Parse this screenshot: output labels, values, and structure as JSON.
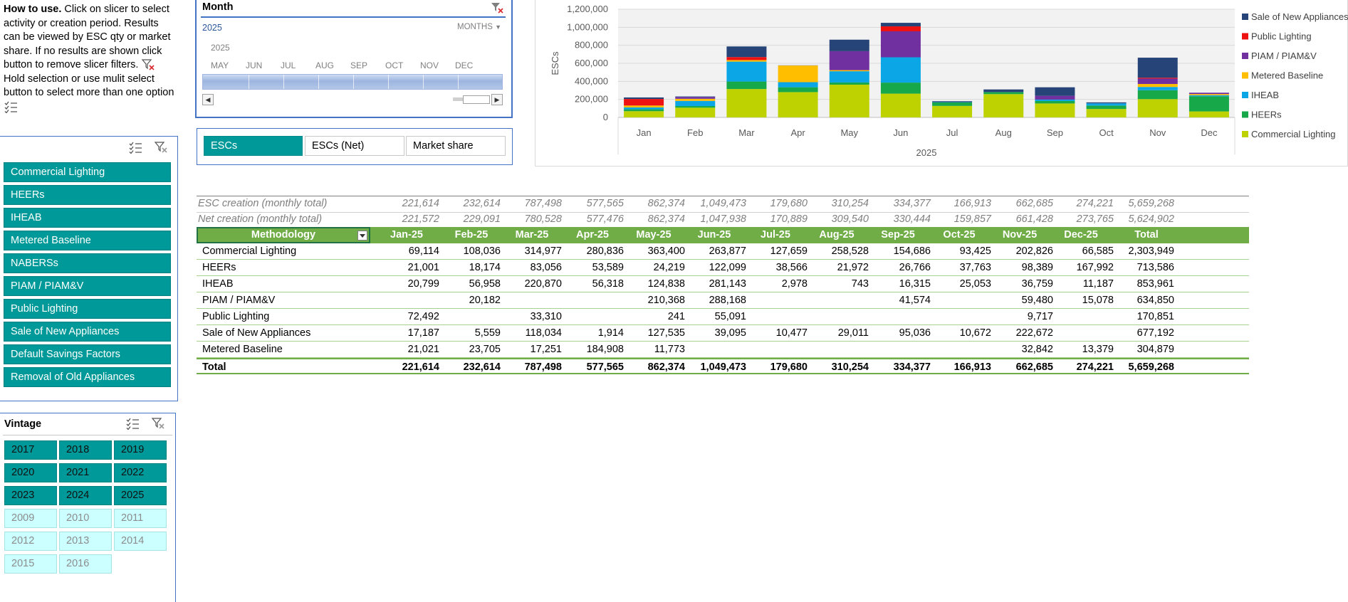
{
  "howto": {
    "heading": "How to use.",
    "text1": " Click on slicer to select activity or creation period. Results can be viewed by ESC qty or market share. If no results are shown click button to remove slicer filters.",
    "text2": " Hold selection or use mulit select button to select more than one option"
  },
  "month_slicer": {
    "title": "Month",
    "year": "2025",
    "units": "MONTHS",
    "timeline_year": "2025",
    "months": [
      "MAY",
      "JUN",
      "JUL",
      "AUG",
      "SEP",
      "OCT",
      "NOV",
      "DEC"
    ]
  },
  "measure": {
    "buttons": [
      {
        "label": "ESCs",
        "selected": true
      },
      {
        "label": "ESCs (Net)",
        "selected": false
      },
      {
        "label": "Market share",
        "selected": false
      }
    ]
  },
  "methodology_slicer": {
    "items": [
      "Commercial Lighting",
      "HEERs",
      "IHEAB",
      "Metered Baseline",
      "NABERSs",
      "PIAM / PIAM&V",
      "Public Lighting",
      "Sale of New Appliances",
      "Default Savings Factors",
      "Removal of Old Appliances"
    ]
  },
  "vintage_slicer": {
    "title": "Vintage",
    "items": [
      {
        "label": "2017",
        "selected": true
      },
      {
        "label": "2018",
        "selected": true
      },
      {
        "label": "2019",
        "selected": true
      },
      {
        "label": "2020",
        "selected": true
      },
      {
        "label": "2021",
        "selected": true
      },
      {
        "label": "2022",
        "selected": true
      },
      {
        "label": "2023",
        "selected": true
      },
      {
        "label": "2024",
        "selected": true
      },
      {
        "label": "2025",
        "selected": true
      },
      {
        "label": "2009",
        "selected": false
      },
      {
        "label": "2010",
        "selected": false
      },
      {
        "label": "2011",
        "selected": false
      },
      {
        "label": "2012",
        "selected": false
      },
      {
        "label": "2013",
        "selected": false
      },
      {
        "label": "2014",
        "selected": false
      },
      {
        "label": "2015",
        "selected": false
      },
      {
        "label": "2016",
        "selected": false
      }
    ]
  },
  "chart_data": {
    "type": "bar",
    "stacked": true,
    "categories": [
      "Jan",
      "Feb",
      "Mar",
      "Apr",
      "May",
      "Jun",
      "Jul",
      "Aug",
      "Sep",
      "Oct",
      "Nov",
      "Dec"
    ],
    "xlabel": "2025",
    "ylabel": "ESCs",
    "ylim": [
      0,
      1200000
    ],
    "yticks": [
      "0",
      "200,000",
      "400,000",
      "600,000",
      "800,000",
      "1,000,000",
      "1,200,000"
    ],
    "legend_position": "right",
    "series": [
      {
        "name": "Commercial Lighting",
        "color": "#bdd200",
        "values": [
          69114,
          108036,
          314977,
          280836,
          363400,
          263877,
          127659,
          258528,
          154686,
          93425,
          202826,
          66585
        ]
      },
      {
        "name": "HEERs",
        "color": "#17a84a",
        "values": [
          21001,
          18174,
          83056,
          53589,
          24219,
          122099,
          38566,
          21972,
          26766,
          37763,
          98389,
          167992
        ]
      },
      {
        "name": "IHEAB",
        "color": "#0aa6e6",
        "values": [
          20799,
          56958,
          220870,
          56318,
          124838,
          281143,
          2978,
          743,
          16315,
          25053,
          36759,
          11187
        ]
      },
      {
        "name": "Metered Baseline",
        "color": "#ffbf00",
        "values": [
          21021,
          23705,
          17251,
          184908,
          11773,
          0,
          0,
          0,
          0,
          0,
          32842,
          13379
        ]
      },
      {
        "name": "PIAM / PIAM&V",
        "color": "#7030a0",
        "values": [
          0,
          20182,
          0,
          0,
          210368,
          288168,
          0,
          0,
          41574,
          0,
          59480,
          15078
        ]
      },
      {
        "name": "Public Lighting",
        "color": "#ee1111",
        "values": [
          72492,
          0,
          33310,
          0,
          241,
          55091,
          0,
          0,
          0,
          0,
          9717,
          0
        ]
      },
      {
        "name": "Sale of New Appliances",
        "color": "#264478",
        "values": [
          17187,
          5559,
          118034,
          1914,
          127535,
          39095,
          10477,
          29011,
          95036,
          10672,
          222672,
          0
        ]
      }
    ],
    "legend": [
      "Sale of New Appliances",
      "Public Lighting",
      "PIAM / PIAM&V",
      "Metered Baseline",
      "IHEAB",
      "HEERs",
      "Commercial Lighting"
    ]
  },
  "table": {
    "summary_rows": [
      {
        "label": "ESC creation (monthly total)",
        "values": [
          "221,614",
          "232,614",
          "787,498",
          "577,565",
          "862,374",
          "1,049,473",
          "179,680",
          "310,254",
          "334,377",
          "166,913",
          "662,685",
          "274,221",
          "5,659,268"
        ]
      },
      {
        "label": "Net creation (monthly total)",
        "values": [
          "221,572",
          "229,091",
          "780,528",
          "577,476",
          "862,374",
          "1,047,938",
          "170,889",
          "309,540",
          "330,444",
          "159,857",
          "661,428",
          "273,765",
          "5,624,902"
        ]
      }
    ],
    "header": {
      "label": "Methodology",
      "columns": [
        "Jan-25",
        "Feb-25",
        "Mar-25",
        "Apr-25",
        "May-25",
        "Jun-25",
        "Jul-25",
        "Aug-25",
        "Sep-25",
        "Oct-25",
        "Nov-25",
        "Dec-25",
        "Total"
      ]
    },
    "rows": [
      {
        "label": "Commercial Lighting",
        "values": [
          "69,114",
          "108,036",
          "314,977",
          "280,836",
          "363,400",
          "263,877",
          "127,659",
          "258,528",
          "154,686",
          "93,425",
          "202,826",
          "66,585",
          "2,303,949"
        ]
      },
      {
        "label": "HEERs",
        "values": [
          "21,001",
          "18,174",
          "83,056",
          "53,589",
          "24,219",
          "122,099",
          "38,566",
          "21,972",
          "26,766",
          "37,763",
          "98,389",
          "167,992",
          "713,586"
        ]
      },
      {
        "label": "IHEAB",
        "values": [
          "20,799",
          "56,958",
          "220,870",
          "56,318",
          "124,838",
          "281,143",
          "2,978",
          "743",
          "16,315",
          "25,053",
          "36,759",
          "11,187",
          "853,961"
        ]
      },
      {
        "label": "PIAM / PIAM&V",
        "values": [
          "",
          "20,182",
          "",
          "",
          "210,368",
          "288,168",
          "",
          "",
          "41,574",
          "",
          "59,480",
          "15,078",
          "634,850"
        ]
      },
      {
        "label": "Public Lighting",
        "values": [
          "72,492",
          "",
          "33,310",
          "",
          "241",
          "55,091",
          "",
          "",
          "",
          "",
          "9,717",
          "",
          "170,851"
        ]
      },
      {
        "label": "Sale of New Appliances",
        "values": [
          "17,187",
          "5,559",
          "118,034",
          "1,914",
          "127,535",
          "39,095",
          "10,477",
          "29,011",
          "95,036",
          "10,672",
          "222,672",
          "",
          "677,192"
        ]
      },
      {
        "label": "Metered Baseline",
        "values": [
          "21,021",
          "23,705",
          "17,251",
          "184,908",
          "11,773",
          "",
          "",
          "",
          "",
          "",
          "32,842",
          "13,379",
          "304,879"
        ]
      }
    ],
    "total": {
      "label": "Total",
      "values": [
        "221,614",
        "232,614",
        "787,498",
        "577,565",
        "862,374",
        "1,049,473",
        "179,680",
        "310,254",
        "334,377",
        "166,913",
        "662,685",
        "274,221",
        "5,659,268"
      ]
    }
  }
}
